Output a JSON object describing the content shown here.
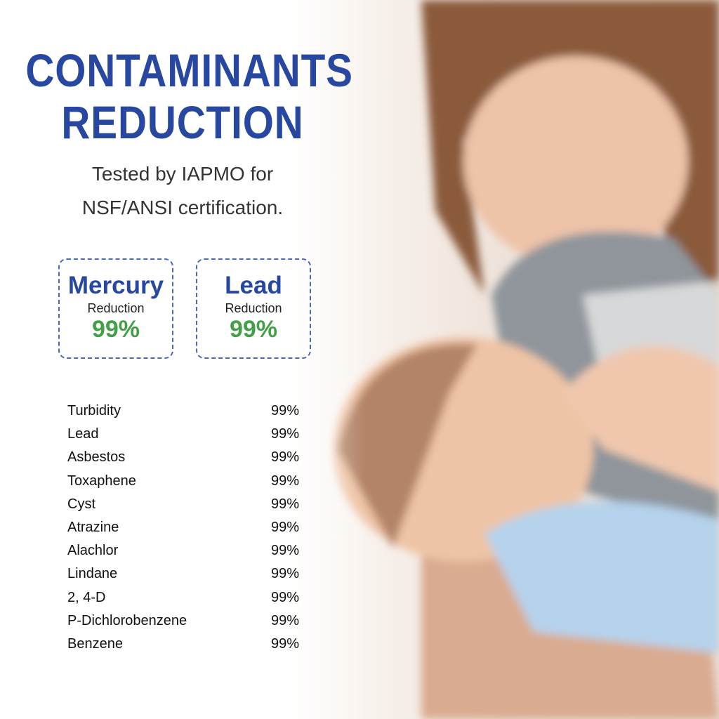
{
  "header": {
    "title_line1": "CONTAMINANTS",
    "title_line2": "REDUCTION",
    "subtitle_line1": "Tested by IAPMO for",
    "subtitle_line2": "NSF/ANSI certification."
  },
  "highlights": [
    {
      "name": "Mercury",
      "label": "Reduction",
      "value": "99%"
    },
    {
      "name": "Lead",
      "label": "Reduction",
      "value": "99%"
    }
  ],
  "contaminants": [
    {
      "name": "Turbidity",
      "value": "99%"
    },
    {
      "name": "Lead",
      "value": "99%"
    },
    {
      "name": "Asbestos",
      "value": "99%"
    },
    {
      "name": "Toxaphene",
      "value": "99%"
    },
    {
      "name": "Cyst",
      "value": "99%"
    },
    {
      "name": "Atrazine",
      "value": "99%"
    },
    {
      "name": "Alachlor",
      "value": "99%"
    },
    {
      "name": "Lindane",
      "value": "99%"
    },
    {
      "name": "2, 4-D",
      "value": "99%"
    },
    {
      "name": "P-Dichlorobenzene",
      "value": "99%"
    },
    {
      "name": "Benzene",
      "value": "99%"
    }
  ],
  "colors": {
    "title": "#2747a0",
    "accent_green": "#43a047",
    "border": "#4a68b8"
  }
}
